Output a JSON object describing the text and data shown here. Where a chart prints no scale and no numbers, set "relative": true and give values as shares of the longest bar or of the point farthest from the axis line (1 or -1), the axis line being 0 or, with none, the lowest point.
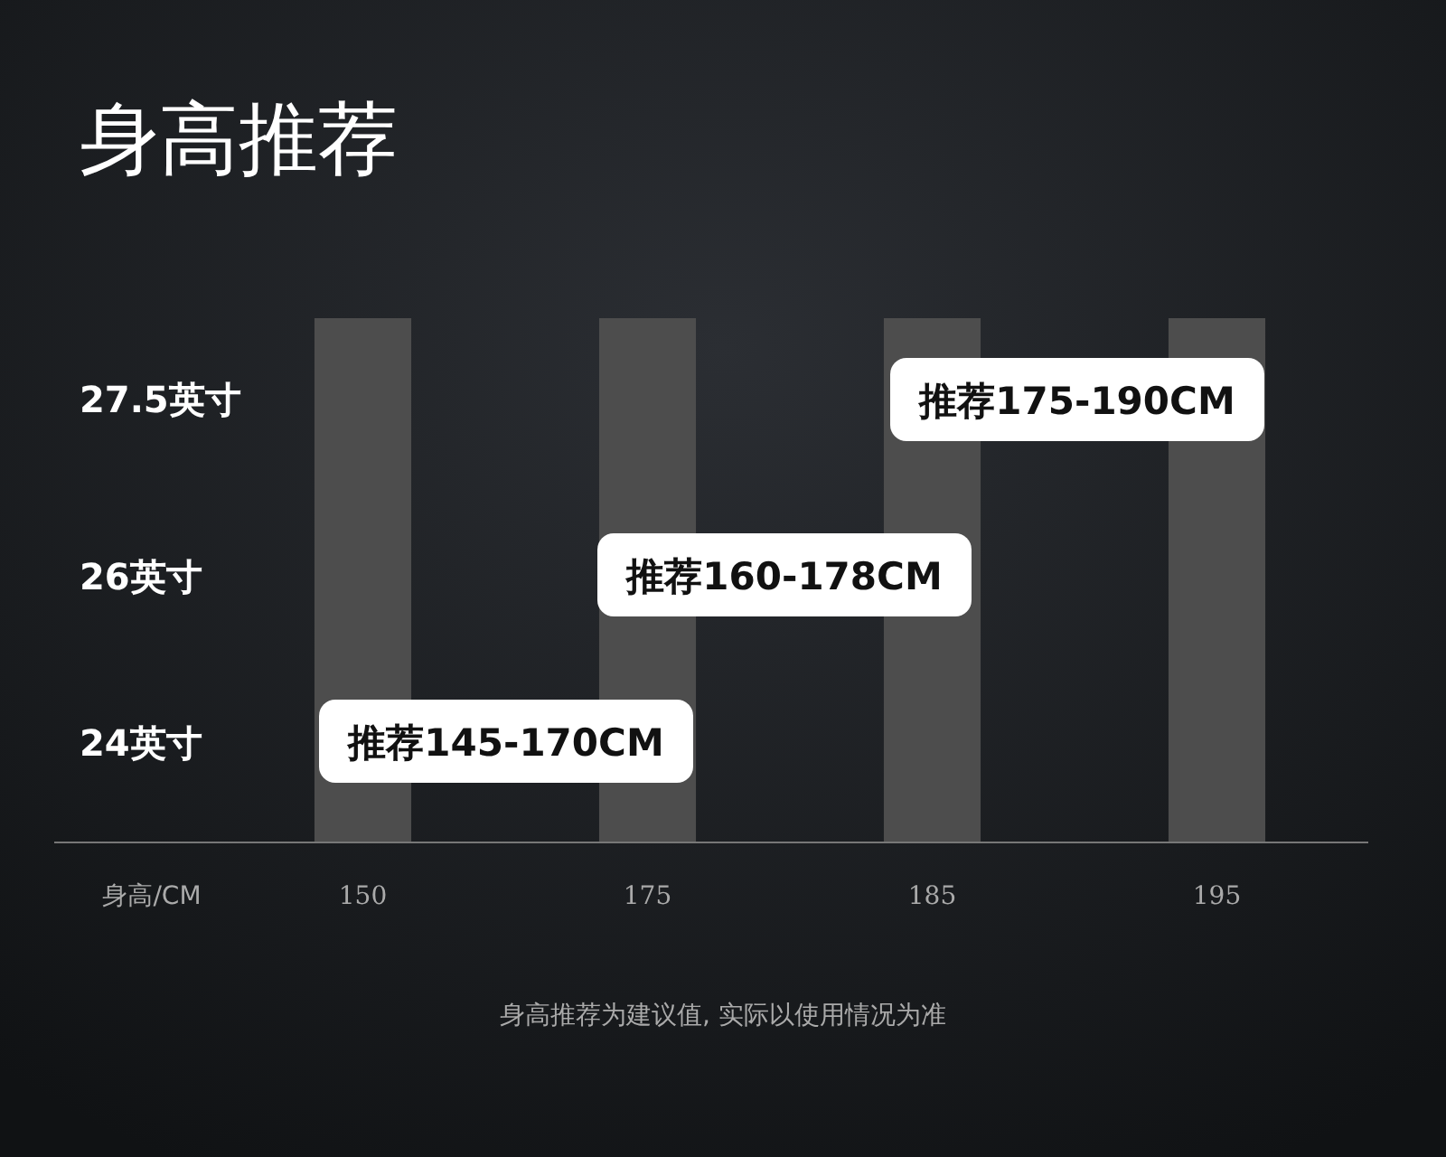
{
  "chart_data": {
    "type": "bar",
    "title": "身高推荐",
    "xlabel": "身高/CM",
    "categories": [
      "150",
      "175",
      "185",
      "195"
    ],
    "values": [
      1,
      1,
      1,
      1
    ],
    "relative": true,
    "color": "#4d4d4d",
    "annotations": [
      "27.5英寸",
      "26英寸",
      "24英寸",
      "推荐175-190CM",
      "推荐160-178CM",
      "推荐145-170CM",
      "身高推荐为建议值, 实际以使用情况为准"
    ]
  }
}
